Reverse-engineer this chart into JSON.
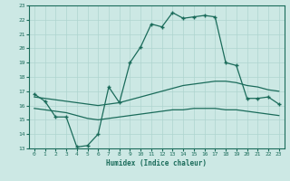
{
  "xlabel": "Humidex (Indice chaleur)",
  "bg_color": "#cce8e4",
  "line_color": "#1a6b5a",
  "grid_color": "#aed4cf",
  "xlim": [
    -0.5,
    23.5
  ],
  "ylim": [
    13,
    23
  ],
  "xticks": [
    0,
    1,
    2,
    3,
    4,
    5,
    6,
    7,
    8,
    9,
    10,
    11,
    12,
    13,
    14,
    15,
    16,
    17,
    18,
    19,
    20,
    21,
    22,
    23
  ],
  "yticks": [
    13,
    14,
    15,
    16,
    17,
    18,
    19,
    20,
    21,
    22,
    23
  ],
  "main_x": [
    0,
    1,
    2,
    3,
    4,
    5,
    6,
    7,
    8,
    9,
    10,
    11,
    12,
    13,
    14,
    15,
    16,
    17,
    18,
    19,
    20,
    21,
    22,
    23
  ],
  "main_y": [
    16.8,
    16.3,
    15.2,
    15.2,
    13.1,
    13.2,
    14.0,
    17.3,
    16.2,
    19.0,
    20.1,
    21.7,
    21.5,
    22.5,
    22.1,
    22.2,
    22.3,
    22.2,
    19.0,
    18.8,
    16.5,
    16.5,
    16.6,
    16.1
  ],
  "upper_x": [
    0,
    1,
    2,
    3,
    4,
    5,
    6,
    7,
    8,
    9,
    10,
    11,
    12,
    13,
    14,
    15,
    16,
    17,
    18,
    19,
    20,
    21,
    22,
    23
  ],
  "upper_y": [
    16.6,
    16.5,
    16.4,
    16.3,
    16.2,
    16.1,
    16.0,
    16.1,
    16.2,
    16.4,
    16.6,
    16.8,
    17.0,
    17.2,
    17.4,
    17.5,
    17.6,
    17.7,
    17.7,
    17.6,
    17.4,
    17.3,
    17.1,
    17.0
  ],
  "lower_x": [
    0,
    1,
    2,
    3,
    4,
    5,
    6,
    7,
    8,
    9,
    10,
    11,
    12,
    13,
    14,
    15,
    16,
    17,
    18,
    19,
    20,
    21,
    22,
    23
  ],
  "lower_y": [
    15.8,
    15.7,
    15.6,
    15.5,
    15.3,
    15.1,
    15.0,
    15.1,
    15.2,
    15.3,
    15.4,
    15.5,
    15.6,
    15.7,
    15.7,
    15.8,
    15.8,
    15.8,
    15.7,
    15.7,
    15.6,
    15.5,
    15.4,
    15.3
  ]
}
